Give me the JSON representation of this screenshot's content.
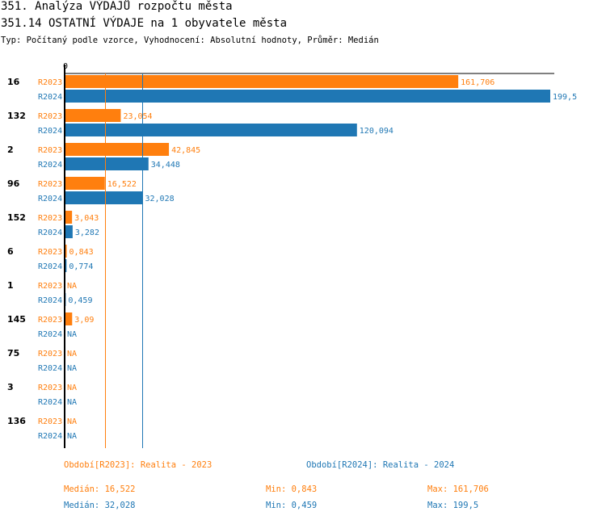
{
  "title": "351. Analýza VÝDAJŮ rozpočtu města",
  "subtitle": "351.14 OSTATNÍ VÝDAJE na 1 obyvatele města",
  "type_line": "Typ: Počítaný podle vzorce, Vyhodnocení: Absolutní hodnoty, Průměr: Medián",
  "colors": {
    "r2023": "#ff7f0e",
    "r2024": "#1f77b4"
  },
  "chart_data": {
    "type": "bar",
    "orientation": "horizontal",
    "x_tick_label": "0",
    "xlim": [
      0,
      199.5
    ],
    "series_names": [
      "R2023",
      "R2024"
    ],
    "groups": [
      {
        "id": "16",
        "values": [
          {
            "series": "R2023",
            "value": 161.706,
            "label": "161,706"
          },
          {
            "series": "R2024",
            "value": 199.5,
            "label": "199,5"
          }
        ]
      },
      {
        "id": "132",
        "values": [
          {
            "series": "R2023",
            "value": 23.054,
            "label": "23,054"
          },
          {
            "series": "R2024",
            "value": 120.094,
            "label": "120,094"
          }
        ]
      },
      {
        "id": "2",
        "values": [
          {
            "series": "R2023",
            "value": 42.845,
            "label": "42,845"
          },
          {
            "series": "R2024",
            "value": 34.448,
            "label": "34,448"
          }
        ]
      },
      {
        "id": "96",
        "values": [
          {
            "series": "R2023",
            "value": 16.522,
            "label": "16,522"
          },
          {
            "series": "R2024",
            "value": 32.028,
            "label": "32,028"
          }
        ]
      },
      {
        "id": "152",
        "values": [
          {
            "series": "R2023",
            "value": 3.043,
            "label": "3,043"
          },
          {
            "series": "R2024",
            "value": 3.282,
            "label": "3,282"
          }
        ]
      },
      {
        "id": "6",
        "values": [
          {
            "series": "R2023",
            "value": 0.843,
            "label": "0,843"
          },
          {
            "series": "R2024",
            "value": 0.774,
            "label": "0,774"
          }
        ]
      },
      {
        "id": "1",
        "values": [
          {
            "series": "R2023",
            "value": null,
            "label": "NA"
          },
          {
            "series": "R2024",
            "value": 0.459,
            "label": "0,459"
          }
        ]
      },
      {
        "id": "145",
        "values": [
          {
            "series": "R2023",
            "value": 3.09,
            "label": "3,09"
          },
          {
            "series": "R2024",
            "value": null,
            "label": "NA"
          }
        ]
      },
      {
        "id": "75",
        "values": [
          {
            "series": "R2023",
            "value": null,
            "label": "NA"
          },
          {
            "series": "R2024",
            "value": null,
            "label": "NA"
          }
        ]
      },
      {
        "id": "3",
        "values": [
          {
            "series": "R2023",
            "value": null,
            "label": "NA"
          },
          {
            "series": "R2024",
            "value": null,
            "label": "NA"
          }
        ]
      },
      {
        "id": "136",
        "values": [
          {
            "series": "R2023",
            "value": null,
            "label": "NA"
          },
          {
            "series": "R2024",
            "value": null,
            "label": "NA"
          }
        ]
      }
    ],
    "reference_lines": [
      {
        "series": "R2023",
        "value": 16.522
      },
      {
        "series": "R2024",
        "value": 32.028
      }
    ]
  },
  "legend": {
    "r2023": "Období[R2023]: Realita - 2023",
    "r2024": "Období[R2024]: Realita - 2024"
  },
  "stats": {
    "r2023": {
      "median": "Medián: 16,522",
      "min": "Min: 0,843",
      "max": "Max: 161,706"
    },
    "r2024": {
      "median": "Medián: 32,028",
      "min": "Min: 0,459",
      "max": "Max: 199,5"
    }
  }
}
